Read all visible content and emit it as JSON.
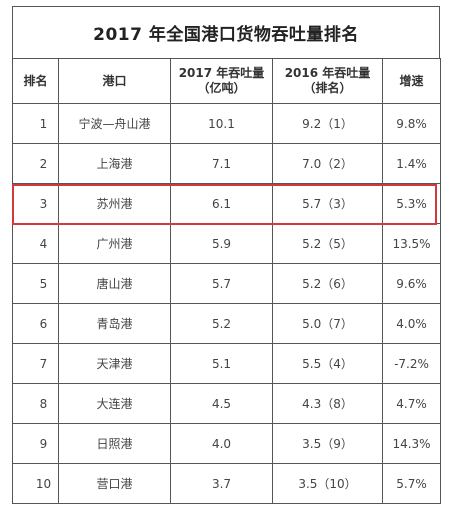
{
  "title": "2017 年全国港口货物吞吐量排名",
  "headers": {
    "rank": "排名",
    "port": "港口",
    "y2017_line1": "2017 年吞吐量",
    "y2017_line2": "（亿吨）",
    "y2016_line1": "2016 年吞吐量",
    "y2016_line2": "（排名）",
    "growth": "增速"
  },
  "rows": [
    {
      "rank": "1",
      "port": "宁波—舟山港",
      "v2017": "10.1",
      "v2016": "9.2（1）",
      "growth": "9.8%"
    },
    {
      "rank": "2",
      "port": "上海港",
      "v2017": "7.1",
      "v2016": "7.0（2）",
      "growth": "1.4%"
    },
    {
      "rank": "3",
      "port": "苏州港",
      "v2017": "6.1",
      "v2016": "5.7（3）",
      "growth": "5.3%"
    },
    {
      "rank": "4",
      "port": "广州港",
      "v2017": "5.9",
      "v2016": "5.2（5）",
      "growth": "13.5%"
    },
    {
      "rank": "5",
      "port": "唐山港",
      "v2017": "5.7",
      "v2016": "5.2（6）",
      "growth": "9.6%"
    },
    {
      "rank": "6",
      "port": "青岛港",
      "v2017": "5.2",
      "v2016": "5.0（7）",
      "growth": "4.0%"
    },
    {
      "rank": "7",
      "port": "天津港",
      "v2017": "5.1",
      "v2016": "5.5（4）",
      "growth": "-7.2%"
    },
    {
      "rank": "8",
      "port": "大连港",
      "v2017": "4.5",
      "v2016": "4.3（8）",
      "growth": "4.7%"
    },
    {
      "rank": "9",
      "port": "日照港",
      "v2017": "4.0",
      "v2016": "3.5（9）",
      "growth": "14.3%"
    },
    {
      "rank": "10",
      "port": "营口港",
      "v2017": "3.7",
      "v2016": "3.5（10）",
      "growth": "5.7%"
    }
  ],
  "colors": {
    "highlight_border": "#d13a3a",
    "negative_growth": "#e0342f"
  }
}
